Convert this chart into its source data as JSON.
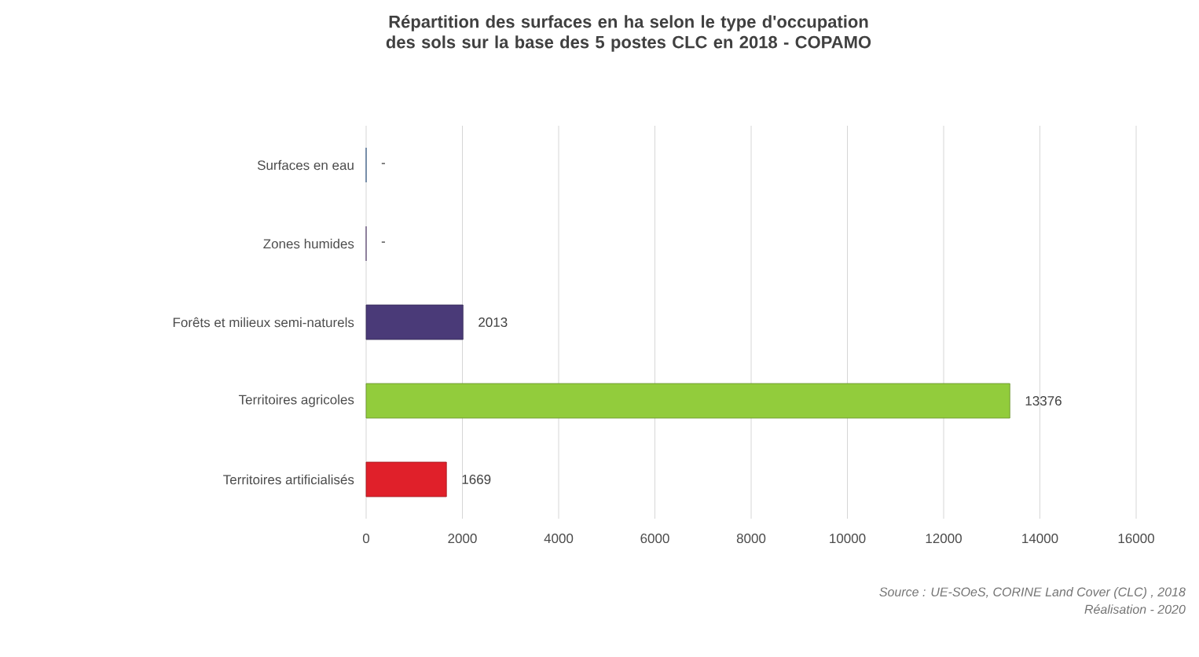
{
  "chart_data": {
    "type": "bar",
    "orientation": "horizontal",
    "title": "Répartition des surfaces en ha selon le type d'occupation des sols sur la base des 5 postes CLC en 2018 - COPAMO",
    "categories": [
      "Surfaces en eau",
      "Zones humides",
      "Forêts et milieux semi-naturels",
      "Territoires agricoles",
      "Territoires artificialisés"
    ],
    "values": [
      0,
      0,
      2013,
      13376,
      1669
    ],
    "value_labels": [
      "-",
      "-",
      "2013",
      "13376",
      "1669"
    ],
    "colors": [
      "#4f81bd",
      "#8064a2",
      "#4a3a78",
      "#92cc3c",
      "#e0202a"
    ],
    "xlim": [
      0,
      16000
    ],
    "xticks": [
      0,
      2000,
      4000,
      6000,
      8000,
      10000,
      12000,
      14000,
      16000
    ],
    "grid": "x",
    "annotations": [
      "Source : UE-SOeS, CORINE Land Cover (CLC) , 2018",
      "Réalisation - 2020"
    ]
  }
}
